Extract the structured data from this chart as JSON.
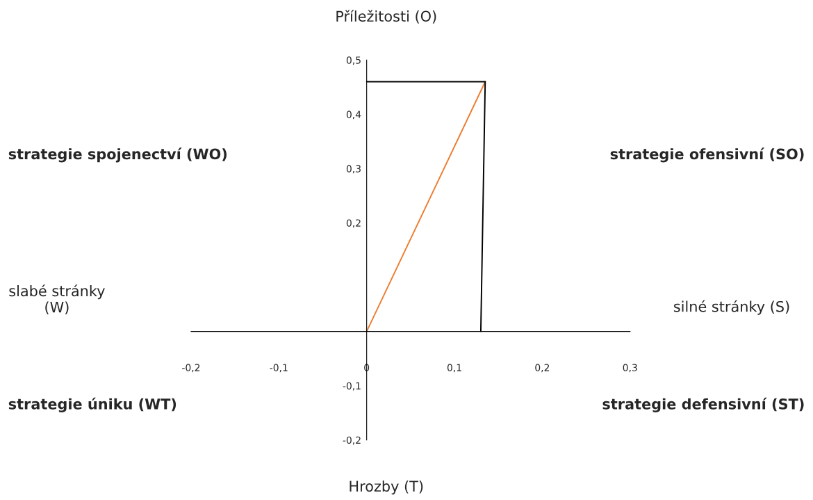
{
  "chart_data": {
    "type": "line",
    "series": [
      {
        "color": "#ed7d31",
        "x": [
          0,
          0.135
        ],
        "values": [
          0,
          0.46
        ]
      },
      {
        "color": "#000000",
        "x": [
          0,
          0.135
        ],
        "values": [
          0.46,
          0.46
        ]
      },
      {
        "color": "#000000",
        "x": [
          0.135,
          0.13
        ],
        "values": [
          0.46,
          0
        ]
      }
    ],
    "xlim": [
      -0.2,
      0.3
    ],
    "ylim": [
      -0.2,
      0.5
    ],
    "xticks": [
      {
        "value": -0.2,
        "label": "-0,2"
      },
      {
        "value": -0.1,
        "label": "-0,1"
      },
      {
        "value": 0,
        "label": "0"
      },
      {
        "value": 0.1,
        "label": "0,1"
      },
      {
        "value": 0.2,
        "label": "0,2"
      },
      {
        "value": 0.3,
        "label": "0,3"
      }
    ],
    "yticks": [
      {
        "value": -0.2,
        "label": "-0,2"
      },
      {
        "value": -0.1,
        "label": "-0,1"
      },
      {
        "value": 0.2,
        "label": "0,2"
      },
      {
        "value": 0.3,
        "label": "0,3"
      },
      {
        "value": 0.4,
        "label": "0,4"
      },
      {
        "value": 0.5,
        "label": "0,5"
      }
    ],
    "ylabel": "Příležitosti (O)",
    "xlabel": "Hrozby (T)",
    "annotations": [
      "slabé stránky\n(W)",
      "silné stránky (S)",
      "strategie spojenectví (WO)",
      "strategie ofensivní (SO)",
      "strategie úniku (WT)",
      "strategie defensivní (ST)"
    ],
    "grid": false,
    "legend": false,
    "marker": "none",
    "line_style": "solid"
  }
}
